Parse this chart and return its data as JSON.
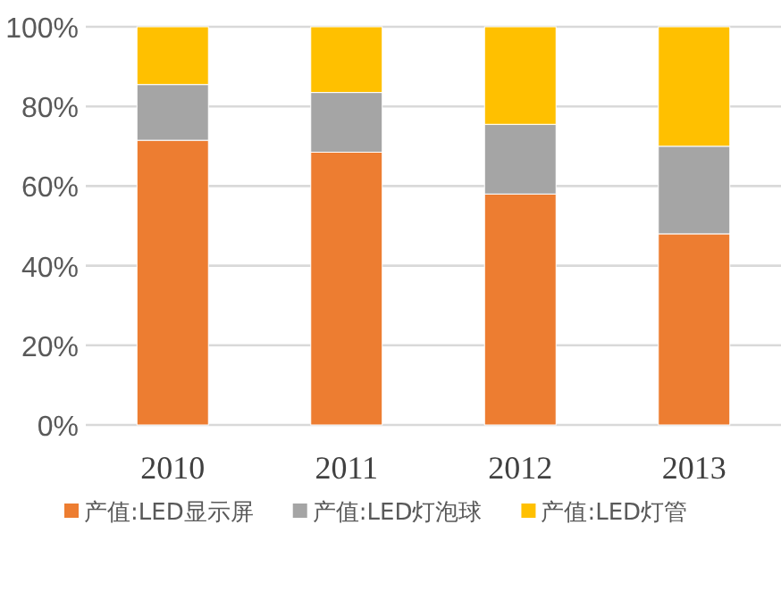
{
  "chart_data": {
    "type": "bar",
    "stacked": true,
    "categories": [
      "2010",
      "2011",
      "2012",
      "2013"
    ],
    "series": [
      {
        "name": "产值:LED显示屏",
        "color": "#ed7d31",
        "values": [
          71.5,
          68.5,
          58,
          48
        ]
      },
      {
        "name": "产值:LED灯泡球",
        "color": "#a5a5a5",
        "values": [
          14,
          15,
          17.5,
          22
        ]
      },
      {
        "name": "产值:LED灯管",
        "color": "#ffc000",
        "values": [
          14.5,
          16.5,
          24.5,
          30
        ]
      }
    ],
    "ylim": [
      0,
      100
    ],
    "yticks": [
      {
        "value": 0,
        "label": "0%"
      },
      {
        "value": 20,
        "label": "20%"
      },
      {
        "value": 40,
        "label": "40%"
      },
      {
        "value": 60,
        "label": "60%"
      },
      {
        "value": 80,
        "label": "80%"
      },
      {
        "value": 100,
        "label": "100%"
      }
    ],
    "grid": "y",
    "legend": "bottom"
  }
}
